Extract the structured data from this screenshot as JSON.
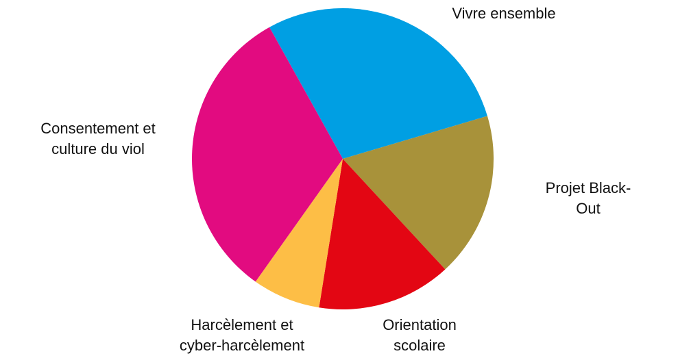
{
  "chart_data": {
    "type": "pie",
    "categories": [
      "Vivre ensemble",
      "Projet Black-Out",
      "Orientation\nscolaire",
      "Harcèlement et\ncyber-harcèlement",
      "Consentement et\nculture du viol"
    ],
    "values": [
      28.5,
      17.7,
      14.4,
      7.3,
      32.1
    ],
    "colors": [
      "#009fe3",
      "#a8923a",
      "#e30613",
      "#fdbe46",
      "#e20b80"
    ]
  }
}
